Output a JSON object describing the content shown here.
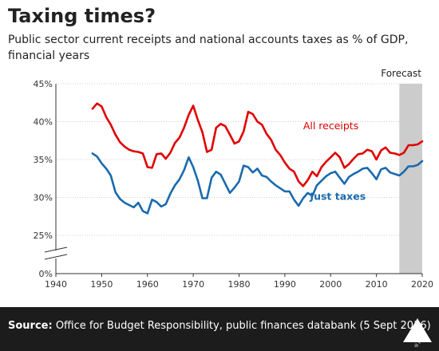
{
  "chart_data": {
    "type": "line",
    "title": "Taxing times?",
    "subtitle": "Public sector current receipts and national accounts taxes as % of GDP, financial years",
    "x_ticks": [
      "1940",
      "1950",
      "1960",
      "1970",
      "1980",
      "1990",
      "2000",
      "2010",
      "2020"
    ],
    "y_ticks": [
      "45%",
      "40%",
      "35%",
      "30%",
      "25%",
      "0%"
    ],
    "xlim": [
      1940,
      2020
    ],
    "ylim": [
      0,
      45
    ],
    "y_axis_break": true,
    "forecast": {
      "label": "Forecast",
      "from": 2015,
      "to": 2020,
      "color": "#cccccc"
    },
    "series": [
      {
        "name": "All receipts",
        "color": "#e00000",
        "x": [
          1948,
          1949,
          1950,
          1951,
          1952,
          1953,
          1954,
          1955,
          1956,
          1957,
          1958,
          1959,
          1960,
          1961,
          1962,
          1963,
          1964,
          1965,
          1966,
          1967,
          1968,
          1969,
          1970,
          1971,
          1972,
          1973,
          1974,
          1975,
          1976,
          1977,
          1978,
          1979,
          1980,
          1981,
          1982,
          1983,
          1984,
          1985,
          1986,
          1987,
          1988,
          1989,
          1990,
          1991,
          1992,
          1993,
          1994,
          1995,
          1996,
          1997,
          1998,
          1999,
          2000,
          2001,
          2002,
          2003,
          2004,
          2005,
          2006,
          2007,
          2008,
          2009,
          2010,
          2011,
          2012,
          2013,
          2014,
          2015,
          2016,
          2017,
          2018,
          2019,
          2020
        ],
        "values": [
          41.7,
          42.4,
          42.0,
          40.6,
          39.6,
          38.3,
          37.3,
          36.7,
          36.3,
          36.1,
          36.0,
          35.8,
          34.0,
          33.9,
          35.7,
          35.8,
          35.1,
          35.9,
          37.2,
          37.9,
          39.2,
          40.9,
          42.1,
          40.2,
          38.6,
          36.0,
          36.3,
          39.2,
          39.7,
          39.4,
          38.3,
          37.1,
          37.4,
          38.7,
          41.3,
          41.0,
          40.0,
          39.6,
          38.4,
          37.6,
          36.3,
          35.6,
          34.6,
          33.8,
          33.4,
          32.1,
          31.5,
          32.3,
          33.4,
          32.8,
          34.0,
          34.7,
          35.3,
          35.9,
          35.3,
          33.9,
          34.4,
          35.1,
          35.7,
          35.8,
          36.3,
          36.1,
          35.0,
          36.2,
          36.6,
          35.9,
          35.8,
          35.6,
          35.9,
          36.9,
          36.9,
          37.0,
          37.4
        ]
      },
      {
        "name": "Just taxes",
        "color": "#1a6aae",
        "x": [
          1948,
          1949,
          1950,
          1951,
          1952,
          1953,
          1954,
          1955,
          1956,
          1957,
          1958,
          1959,
          1960,
          1961,
          1962,
          1963,
          1964,
          1965,
          1966,
          1967,
          1968,
          1969,
          1970,
          1971,
          1972,
          1973,
          1974,
          1975,
          1976,
          1977,
          1978,
          1979,
          1980,
          1981,
          1982,
          1983,
          1984,
          1985,
          1986,
          1987,
          1988,
          1989,
          1990,
          1991,
          1992,
          1993,
          1994,
          1995,
          1996,
          1997,
          1998,
          1999,
          2000,
          2001,
          2002,
          2003,
          2004,
          2005,
          2006,
          2007,
          2008,
          2009,
          2010,
          2011,
          2012,
          2013,
          2014,
          2015,
          2016,
          2017,
          2018,
          2019,
          2020
        ],
        "values": [
          35.8,
          35.4,
          34.5,
          33.8,
          32.9,
          30.7,
          29.8,
          29.3,
          29.0,
          28.7,
          29.3,
          28.2,
          27.9,
          29.7,
          29.4,
          28.8,
          29.1,
          30.5,
          31.6,
          32.4,
          33.6,
          35.3,
          34.0,
          32.2,
          29.9,
          29.9,
          32.6,
          33.4,
          33.0,
          31.8,
          30.6,
          31.3,
          32.1,
          34.2,
          34.0,
          33.3,
          33.8,
          32.9,
          32.7,
          32.1,
          31.6,
          31.2,
          30.8,
          30.8,
          29.7,
          28.9,
          29.9,
          30.6,
          30.2,
          31.6,
          32.2,
          32.8,
          33.2,
          33.4,
          32.6,
          31.8,
          32.7,
          33.1,
          33.4,
          33.8,
          33.9,
          33.2,
          32.4,
          33.7,
          33.9,
          33.3,
          33.1,
          32.9,
          33.4,
          34.1,
          34.1,
          34.3,
          34.8
        ]
      }
    ],
    "annotations": [
      {
        "text": "All receipts",
        "color": "#e00000"
      },
      {
        "text": "Just taxes",
        "color": "#1a6aae"
      }
    ]
  },
  "footer": {
    "source_prefix": "Source:",
    "source_text": " Office for Budget Responsibility, public finances databank (5 Sept 2016)",
    "logo_text": "Full Fact"
  }
}
